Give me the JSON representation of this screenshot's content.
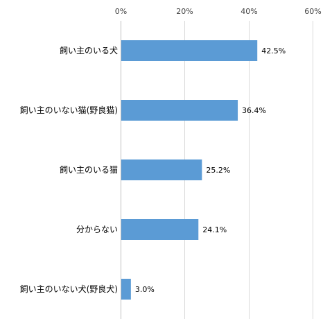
{
  "chart_data": {
    "type": "bar",
    "orientation": "horizontal",
    "categories": [
      "飼い主のいる犬",
      "飼い主のいない猫(野良猫)",
      "飼い主のいる猫",
      "分からない",
      "飼い主のいない犬(野良犬)"
    ],
    "values": [
      42.5,
      36.4,
      25.2,
      24.1,
      3.0
    ],
    "data_labels": [
      "42.5%",
      "36.4%",
      "25.2%",
      "24.1%",
      "3.0%"
    ],
    "xlim": [
      0,
      60
    ],
    "x_ticks": [
      0,
      20,
      40,
      60
    ],
    "x_tick_labels": [
      "0%",
      "20%",
      "40%",
      "60%"
    ],
    "x_axis_position": "top",
    "grid": true,
    "legend": "none",
    "colors": {
      "bar": "#5b9bd5",
      "grid": "#d9d9d9"
    }
  }
}
